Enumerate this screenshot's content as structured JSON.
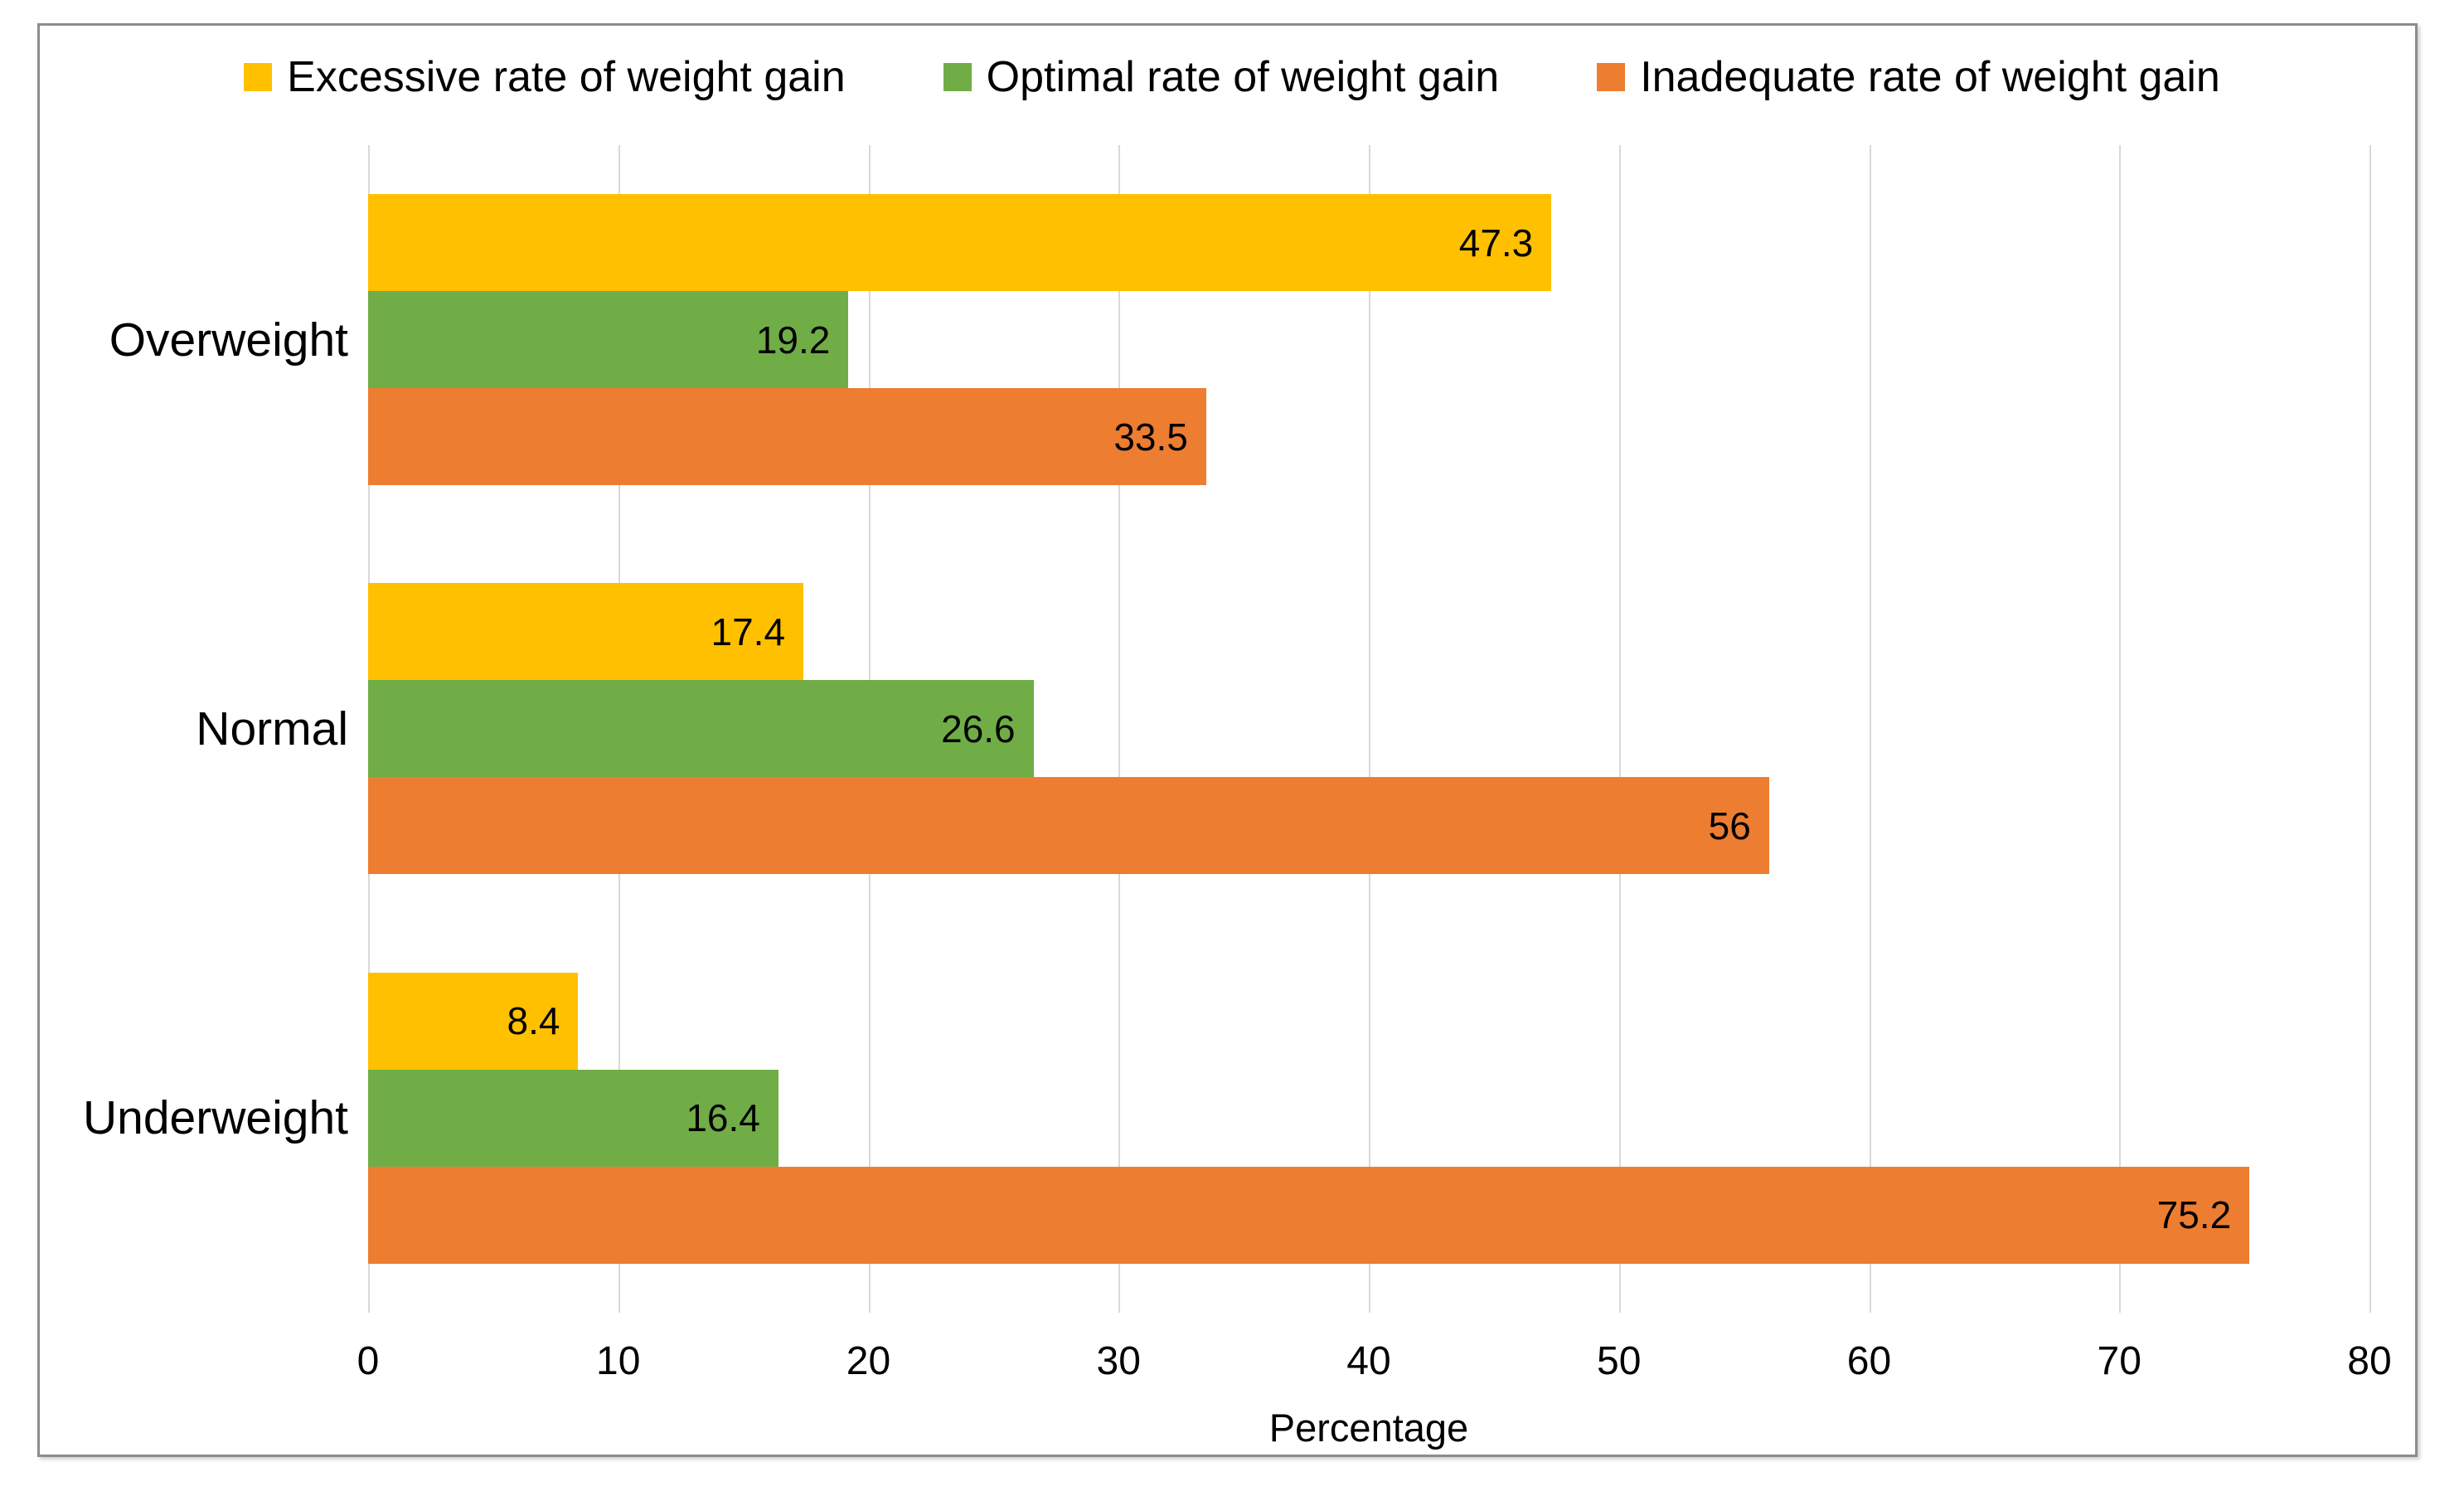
{
  "chart_data": {
    "type": "bar",
    "orientation": "horizontal",
    "categories": [
      "Overweight",
      "Normal",
      "Underweight"
    ],
    "series": [
      {
        "name": "Excessive rate of weight gain",
        "color": "#FFC000",
        "values": [
          47.3,
          17.4,
          8.4
        ]
      },
      {
        "name": "Optimal rate of weight gain",
        "color": "#70AD47",
        "values": [
          19.2,
          26.6,
          16.4
        ]
      },
      {
        "name": "Inadequate rate of weight gain",
        "color": "#ED7D31",
        "values": [
          33.5,
          56,
          75.2
        ]
      }
    ],
    "xlabel": "Percentage",
    "xlim": [
      0,
      80
    ],
    "x_ticks": [
      0,
      10,
      20,
      30,
      40,
      50,
      60,
      70,
      80
    ],
    "grid": "vertical",
    "legend_position": "top",
    "data_labels_visible": true
  },
  "style": {
    "gridline_color": "#D9D9D9",
    "frame_border_color": "#8C8C8C",
    "text_color": "#000000",
    "background_color": "#FFFFFF"
  }
}
